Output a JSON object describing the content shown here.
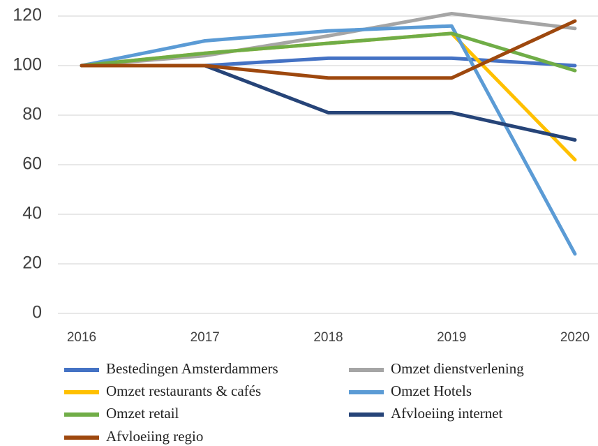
{
  "chart_data": {
    "type": "line",
    "categories": [
      "2016",
      "2017",
      "2018",
      "2019",
      "2020"
    ],
    "series": [
      {
        "name": "Bestedingen Amsterdammers",
        "color": "#4472c4",
        "values": [
          100,
          100,
          103,
          103,
          100
        ]
      },
      {
        "name": "Omzet dienstverlening",
        "color": "#a5a5a5",
        "values": [
          100,
          104,
          112,
          121,
          115
        ]
      },
      {
        "name": "Omzet restaurants & cafés",
        "color": "#ffc000",
        "values": [
          100,
          105,
          109,
          113,
          62
        ]
      },
      {
        "name": "Omzet Hotels",
        "color": "#5b9bd5",
        "values": [
          100,
          110,
          114,
          116,
          24
        ]
      },
      {
        "name": "Omzet retail",
        "color": "#70ad47",
        "values": [
          100,
          105,
          109,
          113,
          98
        ]
      },
      {
        "name": "Afvloeiing internet",
        "color": "#264478",
        "values": [
          100,
          100,
          81,
          81,
          70
        ]
      },
      {
        "name": "Afvloeiing regio",
        "color": "#9e480e",
        "values": [
          100,
          100,
          95,
          95,
          118
        ]
      }
    ],
    "ylim": [
      0,
      120
    ],
    "yticks": [
      0,
      20,
      40,
      60,
      80,
      100,
      120
    ],
    "grid": true,
    "legend": "bottom"
  }
}
